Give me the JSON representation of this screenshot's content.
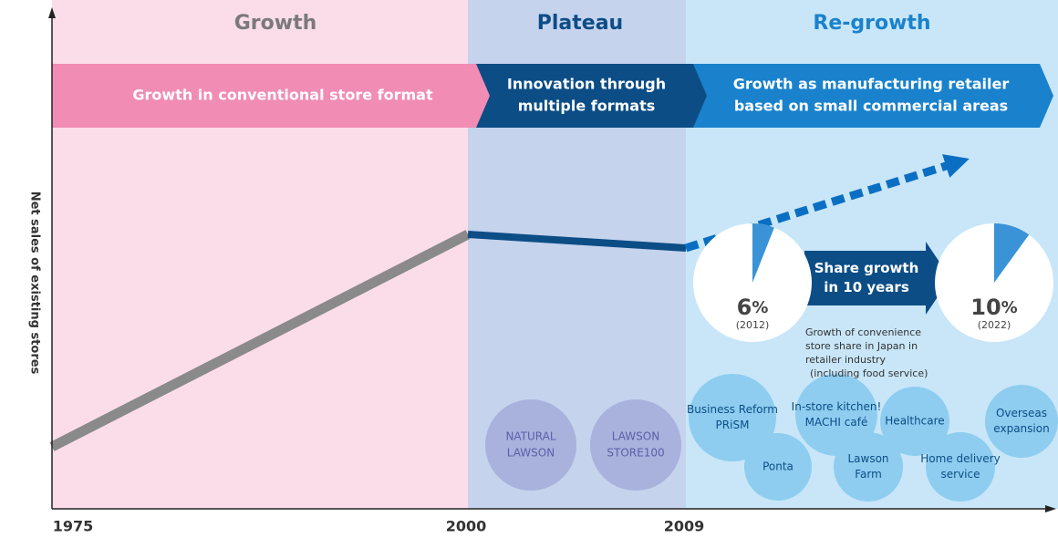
{
  "phases": [
    {
      "title": "Growth",
      "banner": [
        "Growth in conventional store format"
      ]
    },
    {
      "title": "Plateau",
      "banner": [
        "Innovation through",
        "multiple formats"
      ]
    },
    {
      "title": "Re-growth",
      "banner": [
        "Growth as manufacturing retailer",
        "based on small commercial areas"
      ]
    }
  ],
  "y_axis_label": "Net sales of existing stores",
  "years": [
    "1975",
    "2000",
    "2009"
  ],
  "share": {
    "arrow": [
      "Share growth",
      "in 10 years"
    ],
    "pies": [
      {
        "value": 6,
        "unit": "%",
        "year": "(2012)"
      },
      {
        "value": 10,
        "unit": "%",
        "year": "(2022)"
      }
    ],
    "caption": [
      "Growth of convenience",
      "store share in Japan in",
      "retailer industry",
      "(including food service)"
    ]
  },
  "plateau_formats": [
    [
      "NATURAL",
      "LAWSON"
    ],
    [
      "LAWSON",
      "STORE100"
    ]
  ],
  "initiatives": [
    [
      "Business Reform",
      "PRiSM"
    ],
    [
      "Ponta"
    ],
    [
      "In-store kitchen!",
      "MACHI café"
    ],
    [
      "Lawson",
      "Farm"
    ],
    [
      "Healthcare"
    ],
    [
      "Home delivery",
      "service"
    ],
    [
      "Overseas",
      "expansion"
    ]
  ]
}
